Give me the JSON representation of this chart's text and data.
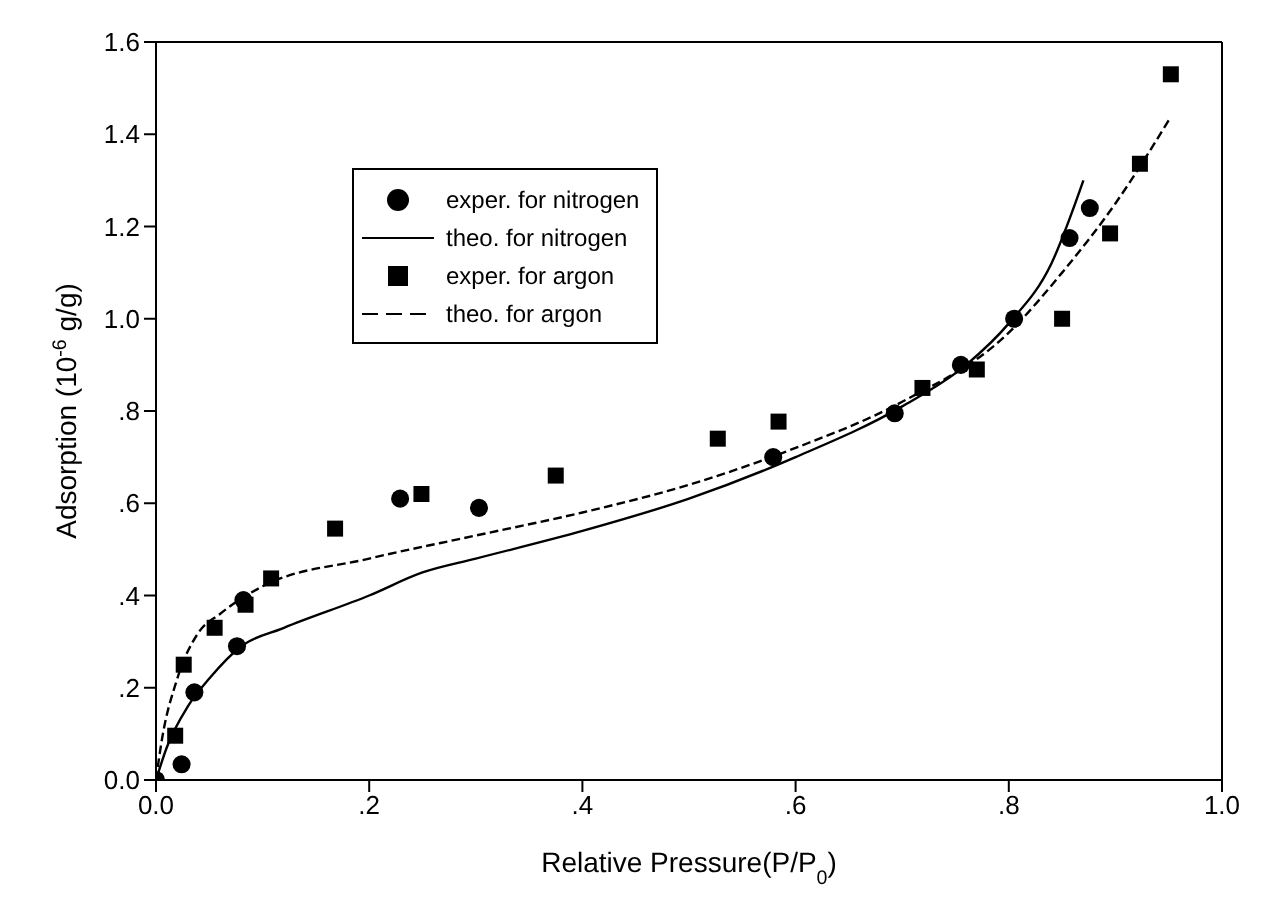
{
  "chart_data": {
    "type": "scatter",
    "xlabel": "Relative Pressure(P/P$_{0}$)",
    "ylabel": "Adsorption (10$^{-6}$ g/g)",
    "xlim": [
      0,
      1
    ],
    "xticks": [
      {
        "value": 0,
        "label": "0.0"
      },
      {
        "value": 0.2,
        "label": ".2"
      },
      {
        "value": 0.4,
        "label": ".4"
      },
      {
        "value": 0.6,
        "label": ".6"
      },
      {
        "value": 0.8,
        "label": ".8"
      },
      {
        "value": 1,
        "label": "1.0"
      }
    ],
    "ylim": [
      0,
      1.6
    ],
    "yticks": [
      {
        "value": 0,
        "label": "0.0"
      },
      {
        "value": 0.2,
        "label": ".2"
      },
      {
        "value": 0.4,
        "label": ".4"
      },
      {
        "value": 0.6,
        "label": ".6"
      },
      {
        "value": 0.8,
        "label": ".8"
      },
      {
        "value": 1,
        "label": "1.0"
      },
      {
        "value": 1.2,
        "label": "1.2"
      },
      {
        "value": 1.4,
        "label": "1.4"
      },
      {
        "value": 1.6,
        "label": "1.6"
      }
    ],
    "legend": "top left",
    "series": [
      {
        "name": "exper. for nitrogen",
        "marker": "circle",
        "color": "#000000",
        "x": [
          0,
          0.024,
          0.036,
          0.076,
          0.082,
          0.229,
          0.303,
          0.579,
          0.693,
          0.755,
          0.805,
          0.857,
          0.876
        ],
        "values": [
          0,
          0.034,
          0.19,
          0.29,
          0.39,
          0.61,
          0.59,
          0.7,
          0.795,
          0.9,
          1.0,
          1.175,
          1.24
        ]
      },
      {
        "name": "theo. for nitrogen",
        "type": "line",
        "line_style": "solid",
        "color": "#000000",
        "x": [
          0,
          0.01,
          0.03,
          0.05,
          0.08,
          0.12,
          0.2,
          0.25,
          0.3,
          0.4,
          0.5,
          0.6,
          0.7,
          0.76,
          0.8,
          0.84,
          0.87
        ],
        "values": [
          0,
          0.07,
          0.16,
          0.22,
          0.29,
          0.33,
          0.4,
          0.45,
          0.48,
          0.54,
          0.61,
          0.7,
          0.81,
          0.9,
          0.99,
          1.12,
          1.3
        ]
      },
      {
        "name": "exper. for argon",
        "marker": "square",
        "color": "#000000",
        "x": [
          0.018,
          0.026,
          0.055,
          0.084,
          0.108,
          0.168,
          0.249,
          0.375,
          0.527,
          0.584,
          0.719,
          0.77,
          0.85,
          0.895,
          0.923,
          0.952
        ],
        "values": [
          0.096,
          0.25,
          0.33,
          0.38,
          0.437,
          0.545,
          0.62,
          0.66,
          0.74,
          0.777,
          0.85,
          0.89,
          1.0,
          1.185,
          1.336,
          1.53
        ]
      },
      {
        "name": "theo. for argon",
        "type": "line",
        "line_style": "dashed",
        "color": "#000000",
        "x": [
          0,
          0.005,
          0.02,
          0.04,
          0.06,
          0.1,
          0.2,
          0.3,
          0.4,
          0.5,
          0.6,
          0.7,
          0.8,
          0.85,
          0.9,
          0.95
        ],
        "values": [
          0,
          0.08,
          0.22,
          0.32,
          0.36,
          0.42,
          0.48,
          0.53,
          0.58,
          0.64,
          0.72,
          0.82,
          0.97,
          1.1,
          1.25,
          1.43
        ]
      }
    ]
  }
}
